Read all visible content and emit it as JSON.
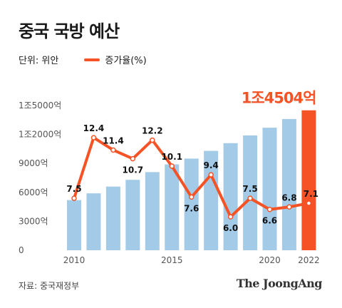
{
  "title": "중국 국방 예산",
  "legend": {
    "unit_label": "단위: 위안",
    "rate_label": "증가율(%)"
  },
  "source": "자료: 중국재정부",
  "brand": "The JoongAng",
  "colors": {
    "bar": "#a3cbe8",
    "highlight": "#f55325",
    "line": "#f55325",
    "text": "#1a1a1a"
  },
  "chart_data": {
    "type": "bar+line",
    "title": "중국 국방 예산",
    "x": [
      2010,
      2011,
      2012,
      2013,
      2014,
      2015,
      2016,
      2017,
      2018,
      2019,
      2020,
      2021,
      2022
    ],
    "x_tick_labels": [
      "2010",
      "2015",
      "2020",
      "2022"
    ],
    "x_tick_values": [
      2010,
      2015,
      2020,
      2022
    ],
    "y_tick_labels": [
      "0",
      "3000억",
      "6000억",
      "9000억",
      "1조2000억",
      "1조5000억"
    ],
    "y_tick_values": [
      0,
      3000,
      6000,
      9000,
      12000,
      15000
    ],
    "ylim": [
      0,
      15000
    ],
    "bars": {
      "name": "국방 예산 (억 위안)",
      "values": [
        5200,
        5900,
        6600,
        7300,
        8100,
        8900,
        9500,
        10300,
        11100,
        11900,
        12700,
        13600,
        14504
      ],
      "highlight_index": 12,
      "highlight_label": "1조4504억"
    },
    "line": {
      "name": "증가율(%)",
      "values": [
        7.5,
        12.4,
        11.4,
        10.7,
        12.2,
        10.1,
        7.6,
        9.4,
        6.0,
        7.5,
        6.6,
        6.8,
        7.1
      ],
      "labels": [
        "7.5",
        "12.4",
        "11.4",
        "10.7",
        "12.2",
        "10.1",
        "7.6",
        "9.4",
        "6.0",
        "7.5",
        "6.6",
        "6.8",
        "7.1"
      ],
      "ylim": [
        3.3,
        15.0
      ]
    },
    "grid": false,
    "legend_position": "top-left"
  }
}
